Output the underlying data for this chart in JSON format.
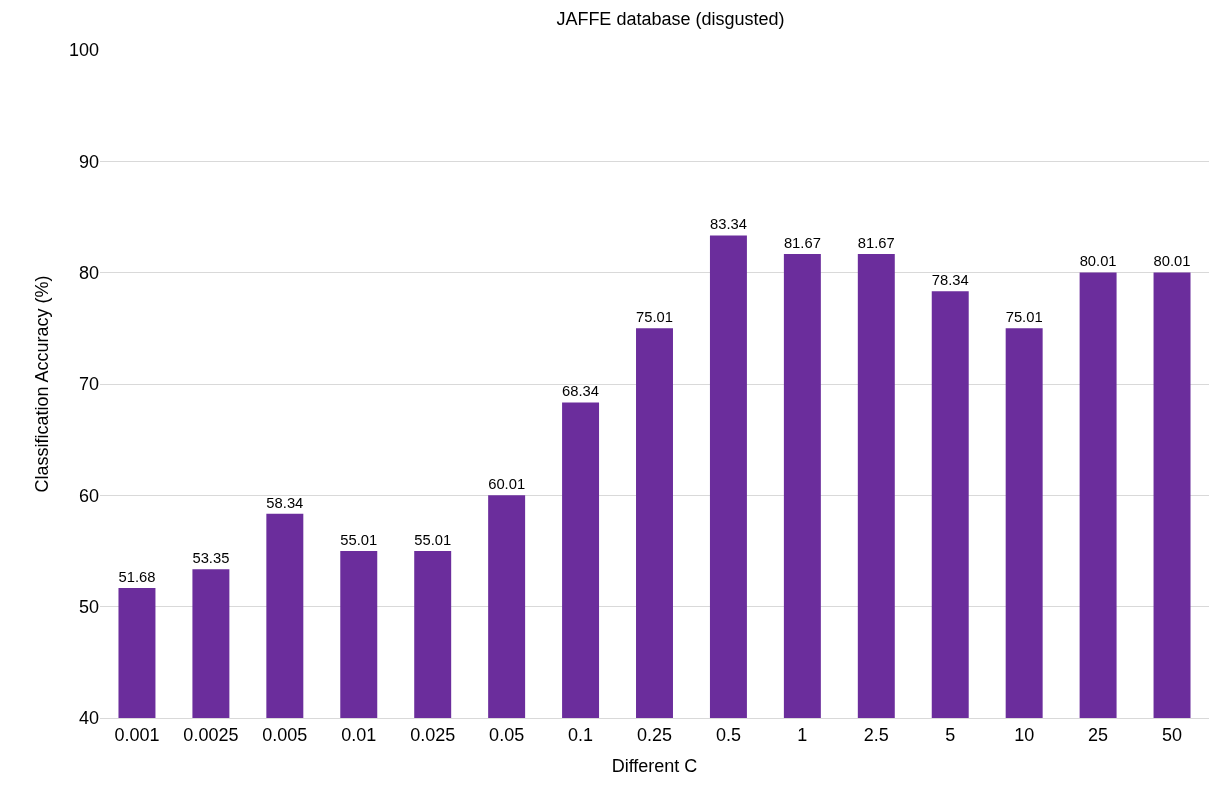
{
  "chart_data": {
    "type": "bar",
    "title": "JAFFE database (disgusted)",
    "xlabel": "Different C",
    "ylabel": "Classification Accuracy (%)",
    "categories": [
      "0.001",
      "0.0025",
      "0.005",
      "0.01",
      "0.025",
      "0.05",
      "0.1",
      "0.25",
      "0.5",
      "1",
      "2.5",
      "5",
      "10",
      "25",
      "50"
    ],
    "values": [
      51.68,
      53.35,
      58.34,
      55.01,
      55.01,
      60.01,
      68.34,
      75.01,
      83.34,
      81.67,
      81.67,
      78.34,
      75.01,
      80.01,
      80.01
    ],
    "color": "#6b2d9c",
    "ylim": [
      40,
      100
    ],
    "yticks": [
      40,
      50,
      60,
      70,
      80,
      90,
      100
    ],
    "grid": "y",
    "data_labels": true
  }
}
